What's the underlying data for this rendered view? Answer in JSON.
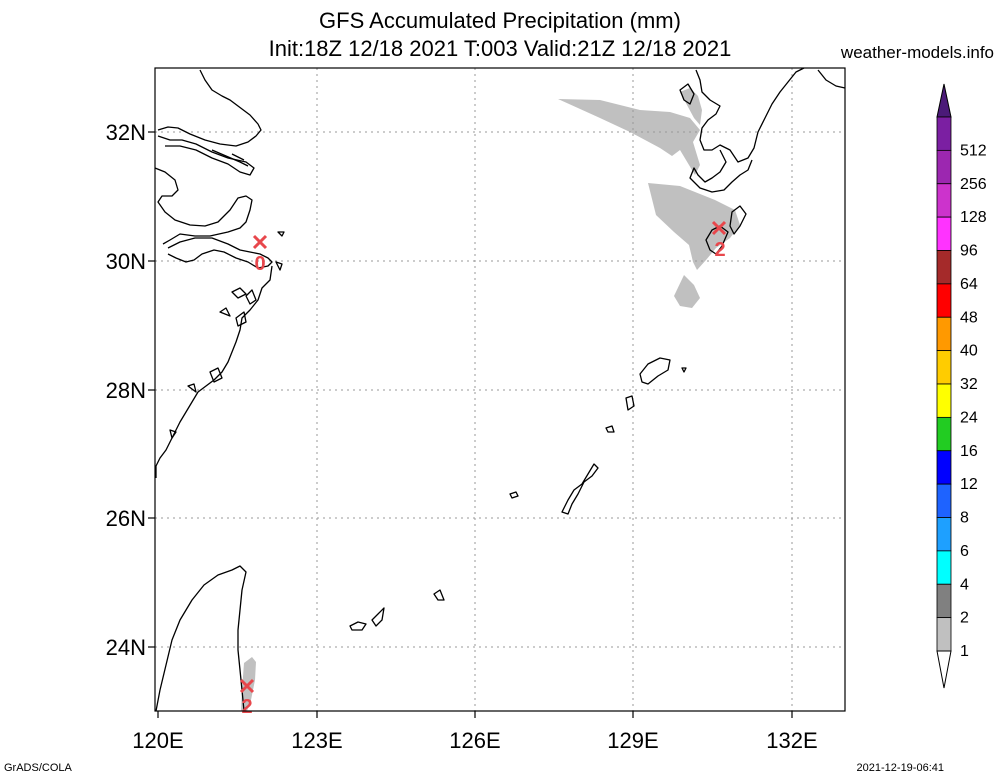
{
  "header": {
    "title": "GFS Accumulated Precipitation (mm)",
    "subtitle": "Init:18Z 12/18 2021 T:003 Valid:21Z 12/18 2021",
    "site": "weather-models.info"
  },
  "map": {
    "lon_range": [
      120,
      133
    ],
    "lat_range": [
      23,
      33
    ],
    "lat_ticks": [
      "32N",
      "30N",
      "28N",
      "26N",
      "24N"
    ],
    "lon_ticks": [
      "120E",
      "123E",
      "126E",
      "129E",
      "132E"
    ],
    "gridlines": "dotted",
    "precip_shading": "light gray, 1-2 mm"
  },
  "markers": [
    {
      "name": "marker-shanghai-area",
      "value": "0",
      "lat": 30.3,
      "lon": 121.9
    },
    {
      "name": "marker-kyushu-south",
      "value": "2",
      "lat": 30.55,
      "lon": 130.6
    },
    {
      "name": "marker-taiwan-east",
      "value": "2",
      "lat": 23.4,
      "lon": 121.7
    }
  ],
  "colorbar": {
    "labels": [
      "512",
      "256",
      "128",
      "96",
      "64",
      "48",
      "40",
      "32",
      "24",
      "16",
      "12",
      "8",
      "6",
      "4",
      "2",
      "1"
    ],
    "colors": [
      "#7b1fa2",
      "#9c27b0",
      "#cc33cc",
      "#ff33ff",
      "#a52a2a",
      "#ff0000",
      "#ff9900",
      "#ffcc00",
      "#ffff00",
      "#22cc22",
      "#0000ff",
      "#1e63ff",
      "#1ea0ff",
      "#00ffff",
      "#808080",
      "#c0c0c0"
    ],
    "top_arrow_color": "#4b1a78",
    "bottom_arrow_color": "#ffffff"
  },
  "footer": {
    "left": "GrADS/COLA",
    "right": "2021-12-19-06:41"
  }
}
